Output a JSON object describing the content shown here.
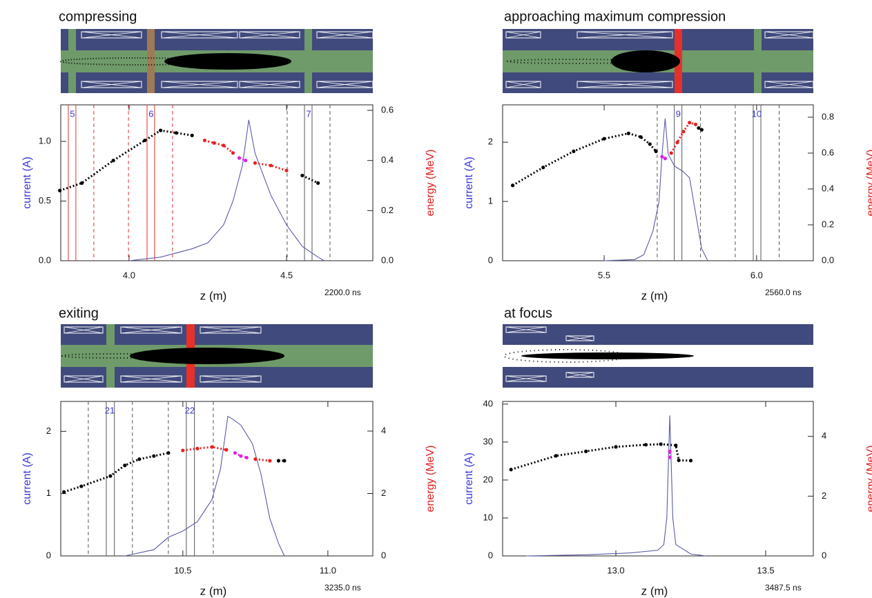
{
  "chart_data": [
    {
      "type": "line",
      "title": "compressing",
      "xlabel": "z (m)",
      "ylabel": "current (A)",
      "y2label": "energy (MeV)",
      "time_label": "2200.0 ns",
      "xlim": [
        3.783,
        4.774
      ],
      "xticks": [
        {
          "value": 4,
          "label": "4.0"
        },
        4.5
      ],
      "ylim": [
        0,
        1.306
      ],
      "yticks": [
        {
          "value": 0,
          "label": "0.0"
        },
        0.5,
        {
          "value": 1,
          "label": "1.0"
        }
      ],
      "y2lim": [
        0,
        0.622
      ],
      "y2ticks": [
        {
          "value": 0,
          "label": "0.0"
        },
        0.2,
        0.4,
        0.6
      ],
      "series": [
        {
          "color": "#5a5aa8",
          "x": [
            4.0,
            4.1,
            4.2,
            4.25,
            4.3,
            4.33,
            4.36,
            4.38,
            4.4,
            4.45,
            4.5,
            4.55,
            4.6,
            4.62
          ],
          "values": [
            0,
            0.03,
            0.1,
            0.15,
            0.3,
            0.5,
            0.8,
            1.18,
            0.9,
            0.55,
            0.3,
            0.12,
            0.03,
            0
          ]
        },
        {
          "color": "#000000",
          "axis": "y2",
          "x": [
            3.78,
            3.85,
            3.95,
            4.05,
            4.1,
            4.15,
            4.2
          ],
          "values": [
            0.28,
            0.31,
            0.4,
            0.48,
            0.52,
            0.51,
            0.5
          ]
        },
        {
          "color": "#e82020",
          "axis": "y2",
          "x": [
            4.24,
            4.27,
            4.3,
            4.33
          ],
          "values": [
            0.48,
            0.47,
            0.46,
            0.43
          ]
        },
        {
          "color": "#e020e0",
          "axis": "y2",
          "x": [
            4.35,
            4.37
          ],
          "values": [
            0.41,
            0.4
          ]
        },
        {
          "color": "#e82020",
          "axis": "y2",
          "x": [
            4.4,
            4.45,
            4.5
          ],
          "values": [
            0.39,
            0.38,
            0.36
          ]
        },
        {
          "color": "#000000",
          "axis": "y2",
          "x": [
            4.55,
            4.6
          ],
          "values": [
            0.34,
            0.31
          ]
        }
      ],
      "vlines": [
        {
          "x": 3.807,
          "color": "#e03030",
          "dash": false
        },
        {
          "x": 3.831,
          "color": "#e03030",
          "dash": false
        },
        {
          "x": 3.888,
          "color": "#e03030",
          "dash": true
        },
        {
          "x": 3.998,
          "color": "#e03030",
          "dash": true
        },
        {
          "x": 4.057,
          "color": "#e03030",
          "dash": false
        },
        {
          "x": 4.081,
          "color": "#e03030",
          "dash": false
        },
        {
          "x": 4.138,
          "color": "#e03030",
          "dash": true
        },
        {
          "x": 4.502,
          "color": "#555555",
          "dash": true
        },
        {
          "x": 4.557,
          "color": "#555555",
          "dash": false
        },
        {
          "x": 4.581,
          "color": "#555555",
          "dash": false
        },
        {
          "x": 4.638,
          "color": "#555555",
          "dash": true
        }
      ],
      "gap_labels": [
        {
          "x": 3.82,
          "label": "5"
        },
        {
          "x": 4.07,
          "label": "6"
        },
        {
          "x": 4.57,
          "label": "7"
        }
      ]
    },
    {
      "type": "line",
      "title": "approaching maximum compression",
      "xlabel": "z (m)",
      "ylabel": "current (A)",
      "y2label": "energy (MeV)",
      "time_label": "2560.0 ns",
      "xlim": [
        5.167,
        6.186
      ],
      "xticks": [
        5.5,
        {
          "value": 6,
          "label": "6.0"
        }
      ],
      "ylim": [
        0,
        2.63
      ],
      "yticks": [
        0,
        1,
        2
      ],
      "y2lim": [
        0,
        0.869
      ],
      "y2ticks": [
        {
          "value": 0,
          "label": "0.0"
        },
        0.2,
        0.4,
        0.6,
        0.8
      ],
      "series": [
        {
          "color": "#5a5aa8",
          "x": [
            5.5,
            5.6,
            5.63,
            5.66,
            5.68,
            5.69,
            5.7,
            5.71,
            5.73,
            5.76,
            5.78,
            5.8,
            5.82,
            5.84
          ],
          "values": [
            0,
            0.02,
            0.1,
            0.5,
            1.0,
            1.8,
            2.4,
            1.8,
            1.6,
            1.5,
            1.4,
            0.8,
            0.2,
            0
          ]
        },
        {
          "color": "#000000",
          "axis": "y2",
          "x": [
            5.2,
            5.3,
            5.4,
            5.5,
            5.58,
            5.62,
            5.65,
            5.67
          ],
          "values": [
            0.42,
            0.52,
            0.61,
            0.68,
            0.71,
            0.69,
            0.65,
            0.61
          ]
        },
        {
          "color": "#e020e0",
          "axis": "y2",
          "x": [
            5.69,
            5.7
          ],
          "values": [
            0.58,
            0.57
          ]
        },
        {
          "color": "#e82020",
          "axis": "y2",
          "x": [
            5.72,
            5.74,
            5.76,
            5.78,
            5.8
          ],
          "values": [
            0.6,
            0.66,
            0.72,
            0.77,
            0.76
          ]
        },
        {
          "color": "#000000",
          "axis": "y2",
          "x": [
            5.81,
            5.82
          ],
          "values": [
            0.74,
            0.73
          ]
        }
      ],
      "vlines": [
        {
          "x": 5.674,
          "color": "#555555",
          "dash": true
        },
        {
          "x": 5.73,
          "color": "#555555",
          "dash": false
        },
        {
          "x": 5.755,
          "color": "#555555",
          "dash": false
        },
        {
          "x": 5.816,
          "color": "#555555",
          "dash": true
        },
        {
          "x": 5.93,
          "color": "#555555",
          "dash": true
        },
        {
          "x": 5.989,
          "color": "#555555",
          "dash": false
        },
        {
          "x": 6.014,
          "color": "#555555",
          "dash": false
        },
        {
          "x": 6.074,
          "color": "#555555",
          "dash": true
        }
      ],
      "gap_labels": [
        {
          "x": 5.743,
          "label": "9"
        },
        {
          "x": 6.0,
          "label": "10"
        }
      ]
    },
    {
      "type": "line",
      "title": "exiting",
      "xlabel": "z (m)",
      "ylabel": "current (A)",
      "y2label": "energy (MeV)",
      "time_label": "3235.0 ns",
      "xlim": [
        10.079,
        11.155
      ],
      "xticks": [
        10.5,
        {
          "value": 11,
          "label": "11.0"
        }
      ],
      "ylim": [
        0,
        2.48
      ],
      "yticks": [
        0,
        1,
        2
      ],
      "y2lim": [
        0,
        4.95
      ],
      "y2ticks": [
        0,
        2,
        4
      ],
      "series": [
        {
          "color": "#5a5aa8",
          "x": [
            10.3,
            10.4,
            10.45,
            10.5,
            10.55,
            10.6,
            10.63,
            10.655,
            10.67,
            10.7,
            10.74,
            10.77,
            10.8,
            10.83,
            10.85
          ],
          "values": [
            0,
            0.1,
            0.3,
            0.4,
            0.55,
            0.9,
            1.4,
            2.24,
            2.2,
            2.1,
            1.8,
            1.3,
            0.6,
            0.2,
            0
          ]
        },
        {
          "color": "#000000",
          "axis": "y2",
          "x": [
            10.09,
            10.15,
            10.25,
            10.3,
            10.35,
            10.4,
            10.45
          ],
          "values": [
            2.05,
            2.23,
            2.56,
            2.9,
            3.1,
            3.2,
            3.3
          ]
        },
        {
          "color": "#e82020",
          "axis": "y2",
          "x": [
            10.5,
            10.55,
            10.6,
            10.65
          ],
          "values": [
            3.38,
            3.44,
            3.49,
            3.4
          ]
        },
        {
          "color": "#e020e0",
          "axis": "y2",
          "x": [
            10.68,
            10.7,
            10.72
          ],
          "values": [
            3.3,
            3.2,
            3.15
          ]
        },
        {
          "color": "#e82020",
          "axis": "y2",
          "x": [
            10.75,
            10.8
          ],
          "values": [
            3.1,
            3.05
          ]
        },
        {
          "color": "#000000",
          "axis": "y2",
          "x": [
            10.83,
            10.85
          ],
          "values": [
            3.05,
            3.05
          ]
        }
      ],
      "vlines": [
        {
          "x": 10.174,
          "color": "#555555",
          "dash": true
        },
        {
          "x": 10.236,
          "color": "#555555",
          "dash": false
        },
        {
          "x": 10.264,
          "color": "#555555",
          "dash": false
        },
        {
          "x": 10.326,
          "color": "#555555",
          "dash": true
        },
        {
          "x": 10.45,
          "color": "#555555",
          "dash": true
        },
        {
          "x": 10.512,
          "color": "#555555",
          "dash": false
        },
        {
          "x": 10.54,
          "color": "#555555",
          "dash": false
        },
        {
          "x": 10.605,
          "color": "#555555",
          "dash": true
        }
      ],
      "gap_labels": [
        {
          "x": 10.248,
          "label": "21"
        },
        {
          "x": 10.524,
          "label": "22"
        }
      ]
    },
    {
      "type": "line",
      "title": "at focus",
      "xlabel": "z (m)",
      "ylabel": "current (A)",
      "y2label": "energy (MeV)",
      "time_label": "3487.5 ns",
      "xlim": [
        12.622,
        13.659
      ],
      "xticks": [
        {
          "value": 13,
          "label": "13.0"
        },
        13.5
      ],
      "ylim": [
        0,
        40.7
      ],
      "yticks": [
        0,
        10,
        20,
        30,
        40
      ],
      "y2lim": [
        0,
        5.17
      ],
      "y2ticks": [
        0,
        2,
        4
      ],
      "series": [
        {
          "color": "#5a5aa8",
          "x": [
            12.7,
            12.9,
            13.05,
            13.14,
            13.16,
            13.17,
            13.18,
            13.19,
            13.2,
            13.25,
            13.3
          ],
          "values": [
            0,
            0.3,
            0.8,
            1.5,
            3,
            10,
            37,
            10,
            3,
            0.5,
            0
          ]
        },
        {
          "color": "#000000",
          "axis": "y2",
          "x": [
            12.65,
            12.8,
            12.9,
            13.0,
            13.1,
            13.15,
            13.2,
            13.21,
            13.25
          ],
          "values": [
            2.89,
            3.35,
            3.5,
            3.65,
            3.72,
            3.74,
            3.7,
            3.2,
            3.19
          ]
        },
        {
          "color": "#e020e0",
          "axis": "y2",
          "x": [
            13.18,
            13.18
          ],
          "values": [
            3.3,
            3.5
          ]
        }
      ],
      "vlines": [],
      "gap_labels": []
    }
  ]
}
